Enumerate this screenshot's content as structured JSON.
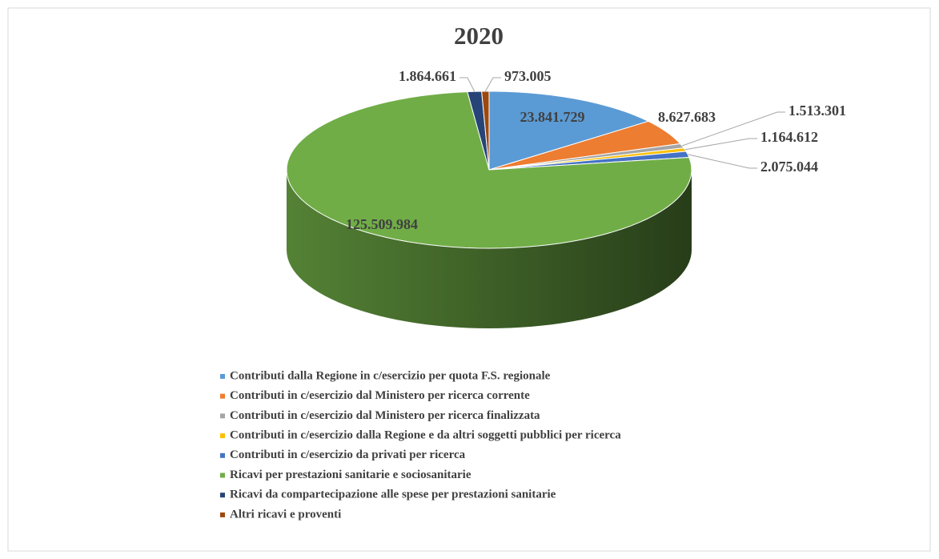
{
  "chart_data": {
    "type": "pie",
    "title": "2020",
    "categories": [
      "Contributi dalla Regione in c/esercizio per quota F.S. regionale",
      "Contributi in c/esercizio dal Ministero per ricerca corrente",
      "Contributi in c/esercizio dal Ministero per ricerca finalizzata",
      "Contributi in c/esercizio dalla Regione e da altri soggetti pubblici per ricerca",
      "Contributi in c/esercizio da privati per ricerca",
      "Ricavi per prestazioni sanitarie e sociosanitarie",
      "Ricavi da compartecipazione alle spese per prestazioni sanitarie",
      "Altri ricavi e proventi"
    ],
    "values": [
      23841729,
      8627683,
      1513301,
      1164612,
      2075044,
      125509984,
      1864661,
      973005
    ],
    "value_labels": [
      "23.841.729",
      "8.627.683",
      "1.513.301",
      "1.164.612",
      "2.075.044",
      "125.509.984",
      "1.864.661",
      "973.005"
    ],
    "colors": [
      "#5b9bd5",
      "#ed7d31",
      "#a5a5a5",
      "#ffc000",
      "#4472c4",
      "#70ad47",
      "#264478",
      "#9e480e"
    ],
    "legend": "bottom"
  }
}
